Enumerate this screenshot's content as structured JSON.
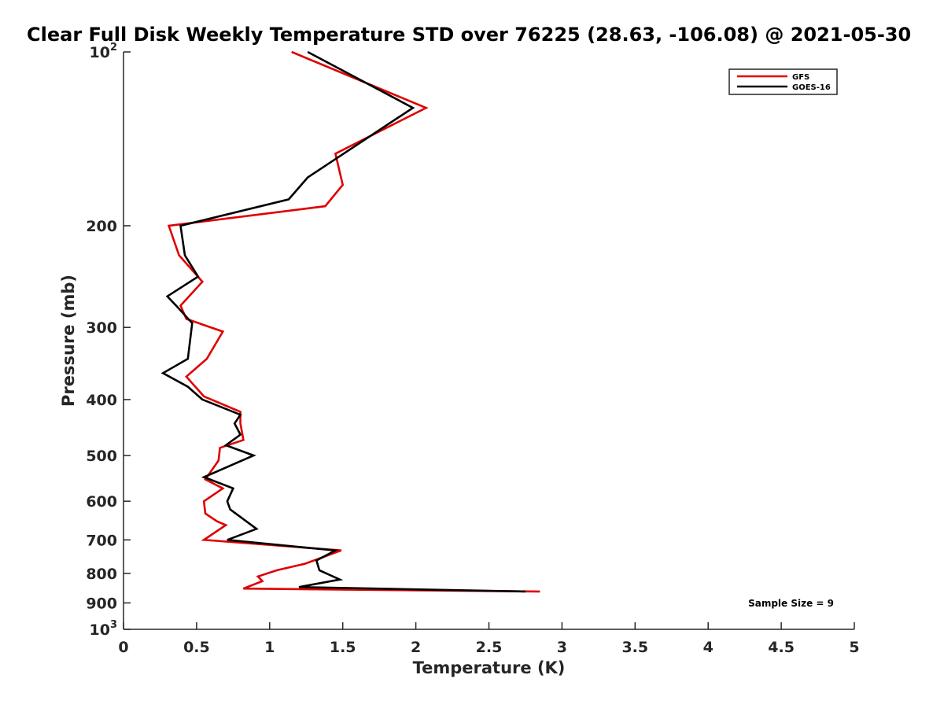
{
  "chart_data": {
    "type": "line",
    "title": "Clear Full Disk Weekly Temperature STD over 76225 (28.63, -106.08) @ 2021-05-30",
    "xlabel": "Temperature (K)",
    "ylabel": "Pressure (mb)",
    "xlim": [
      0,
      5
    ],
    "ylim": [
      100,
      1000
    ],
    "y_scale": "log",
    "y_reversed": true,
    "x_ticks": [
      0,
      0.5,
      1,
      1.5,
      2,
      2.5,
      3,
      3.5,
      4,
      4.5,
      5
    ],
    "x_tick_labels": [
      "0",
      "0.5",
      "1",
      "1.5",
      "2",
      "2.5",
      "3",
      "3.5",
      "4",
      "4.5",
      "5"
    ],
    "y_ticks": [
      {
        "value": 100,
        "base": "10",
        "exp": "2"
      },
      {
        "value": 200,
        "label": "200"
      },
      {
        "value": 300,
        "label": "300"
      },
      {
        "value": 400,
        "label": "400"
      },
      {
        "value": 500,
        "label": "500"
      },
      {
        "value": 600,
        "label": "600"
      },
      {
        "value": 700,
        "label": "700"
      },
      {
        "value": 800,
        "label": "800"
      },
      {
        "value": 900,
        "label": "900"
      },
      {
        "value": 1000,
        "base": "10",
        "exp": "3"
      }
    ],
    "grid": false,
    "legend_position": "top-right",
    "annotation": "Sample Size = 9",
    "series": [
      {
        "name": "GFS",
        "color": "#e00000",
        "points": [
          [
            1.15,
            100
          ],
          [
            2.07,
            125
          ],
          [
            1.45,
            150
          ],
          [
            1.5,
            170
          ],
          [
            1.38,
            185
          ],
          [
            0.31,
            200
          ],
          [
            0.38,
            225
          ],
          [
            0.54,
            250
          ],
          [
            0.39,
            275
          ],
          [
            0.43,
            290
          ],
          [
            0.68,
            305
          ],
          [
            0.57,
            340
          ],
          [
            0.43,
            365
          ],
          [
            0.55,
            395
          ],
          [
            0.8,
            420
          ],
          [
            0.8,
            440
          ],
          [
            0.82,
            470
          ],
          [
            0.66,
            485
          ],
          [
            0.65,
            510
          ],
          [
            0.56,
            550
          ],
          [
            0.68,
            570
          ],
          [
            0.55,
            600
          ],
          [
            0.56,
            630
          ],
          [
            0.64,
            650
          ],
          [
            0.7,
            660
          ],
          [
            0.55,
            700
          ],
          [
            1.49,
            730
          ],
          [
            1.24,
            770
          ],
          [
            1.05,
            790
          ],
          [
            0.92,
            810
          ],
          [
            0.95,
            825
          ],
          [
            0.82,
            850
          ],
          [
            2.85,
            860
          ]
        ]
      },
      {
        "name": "GOES-16",
        "color": "#000000",
        "points": [
          [
            1.26,
            100
          ],
          [
            1.98,
            125
          ],
          [
            1.26,
            165
          ],
          [
            1.13,
            180
          ],
          [
            0.39,
            200
          ],
          [
            0.42,
            225
          ],
          [
            0.51,
            245
          ],
          [
            0.3,
            265
          ],
          [
            0.36,
            275
          ],
          [
            0.47,
            295
          ],
          [
            0.44,
            340
          ],
          [
            0.27,
            360
          ],
          [
            0.44,
            380
          ],
          [
            0.54,
            400
          ],
          [
            0.8,
            425
          ],
          [
            0.76,
            440
          ],
          [
            0.8,
            460
          ],
          [
            0.7,
            480
          ],
          [
            0.89,
            500
          ],
          [
            0.55,
            545
          ],
          [
            0.75,
            570
          ],
          [
            0.71,
            600
          ],
          [
            0.73,
            620
          ],
          [
            0.84,
            650
          ],
          [
            0.91,
            670
          ],
          [
            0.71,
            700
          ],
          [
            1.45,
            730
          ],
          [
            1.32,
            760
          ],
          [
            1.34,
            790
          ],
          [
            1.48,
            820
          ],
          [
            1.2,
            845
          ],
          [
            2.75,
            860
          ]
        ]
      }
    ]
  }
}
